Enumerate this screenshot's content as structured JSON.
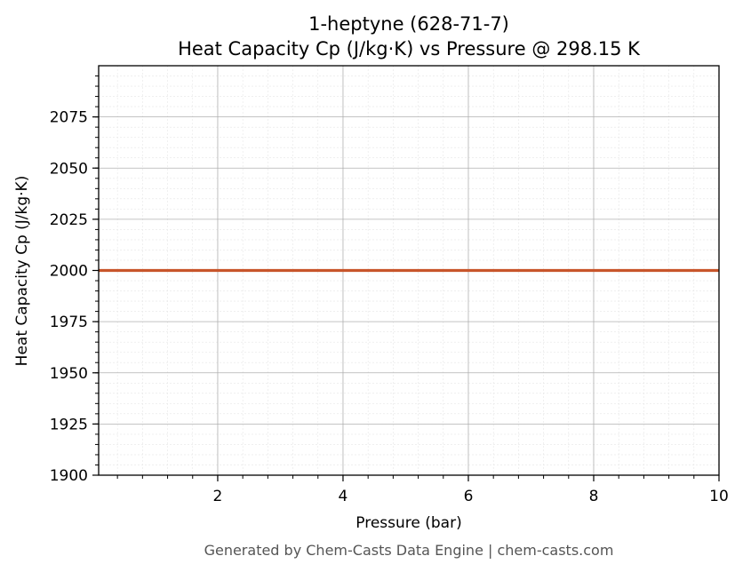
{
  "chart_data": {
    "type": "line",
    "title": "1-heptyne (628-71-7)",
    "subtitle": "Heat Capacity Cp (J/kg·K) vs Pressure @ 298.15 K",
    "xlabel": "Pressure (bar)",
    "ylabel": "Heat Capacity Cp (J/kg·K)",
    "xlim": [
      0.1,
      10
    ],
    "ylim": [
      1900,
      2100
    ],
    "x_ticks": [
      2,
      4,
      6,
      8,
      10
    ],
    "y_ticks": [
      1900,
      1925,
      1950,
      1975,
      2000,
      2025,
      2050,
      2075
    ],
    "x_tick_labels": [
      "2",
      "4",
      "6",
      "8",
      "10"
    ],
    "y_tick_labels": [
      "1900",
      "1925",
      "1950",
      "1975",
      "2000",
      "2025",
      "2050",
      "2075"
    ],
    "grid": true,
    "minor_grid": true,
    "series": [
      {
        "color": "#c8552b",
        "x": [
          0.1,
          10
        ],
        "y": [
          2000,
          2000
        ]
      }
    ]
  },
  "footer": "Generated by Chem-Casts Data Engine | chem-casts.com"
}
